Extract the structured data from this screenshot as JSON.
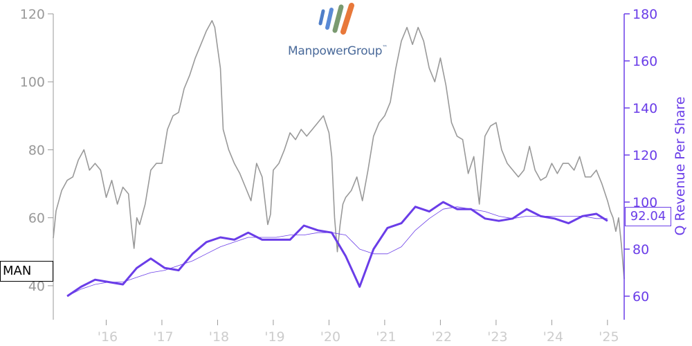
{
  "logo": {
    "text": "ManpowerGroup",
    "trademark": "™"
  },
  "ticker": "MAN",
  "current_value": "92.04",
  "colors": {
    "price": "#999999",
    "revenue": "#6a3de8",
    "axis_left": "#999999",
    "axis_right": "#6a3de8"
  },
  "chart_data": {
    "type": "line",
    "ylabel_right": "Q Revenue Per Share",
    "xlabel": "",
    "x_tick_labels": [
      "'16",
      "'17",
      "'18",
      "'19",
      "'20",
      "'21",
      "'22",
      "'23",
      "'24",
      "'25"
    ],
    "x_tick_positions": [
      2016,
      2017,
      2018,
      2019,
      2020,
      2021,
      2022,
      2023,
      2024,
      2025
    ],
    "xlim": [
      2015.05,
      2025.3
    ],
    "left_axis": {
      "ylim": [
        30,
        120
      ],
      "ticks": [
        40,
        60,
        80,
        100,
        120
      ]
    },
    "right_axis": {
      "ylim": [
        50,
        180
      ],
      "ticks": [
        60,
        80,
        100,
        120,
        140,
        160,
        180
      ]
    },
    "series": [
      {
        "name": "MAN",
        "axis": "left",
        "x": [
          2015.05,
          2015.1,
          2015.2,
          2015.3,
          2015.4,
          2015.5,
          2015.6,
          2015.7,
          2015.8,
          2015.9,
          2016.0,
          2016.1,
          2016.2,
          2016.3,
          2016.4,
          2016.45,
          2016.5,
          2016.55,
          2016.6,
          2016.7,
          2016.8,
          2016.9,
          2017.0,
          2017.1,
          2017.2,
          2017.3,
          2017.4,
          2017.5,
          2017.6,
          2017.7,
          2017.8,
          2017.9,
          2017.95,
          2018.0,
          2018.05,
          2018.1,
          2018.2,
          2018.3,
          2018.4,
          2018.5,
          2018.6,
          2018.7,
          2018.8,
          2018.9,
          2018.95,
          2019.0,
          2019.1,
          2019.2,
          2019.3,
          2019.4,
          2019.5,
          2019.6,
          2019.7,
          2019.8,
          2019.9,
          2020.0,
          2020.05,
          2020.1,
          2020.15,
          2020.2,
          2020.25,
          2020.3,
          2020.4,
          2020.5,
          2020.6,
          2020.7,
          2020.8,
          2020.9,
          2021.0,
          2021.1,
          2021.2,
          2021.3,
          2021.4,
          2021.5,
          2021.6,
          2021.7,
          2021.8,
          2021.9,
          2022.0,
          2022.1,
          2022.2,
          2022.3,
          2022.4,
          2022.5,
          2022.6,
          2022.7,
          2022.8,
          2022.9,
          2023.0,
          2023.1,
          2023.2,
          2023.3,
          2023.4,
          2023.5,
          2023.6,
          2023.7,
          2023.8,
          2023.9,
          2024.0,
          2024.1,
          2024.2,
          2024.3,
          2024.4,
          2024.5,
          2024.6,
          2024.7,
          2024.8,
          2024.9,
          2025.0,
          2025.05,
          2025.1,
          2025.15,
          2025.2,
          2025.25,
          2025.3
        ],
        "values": [
          54,
          62,
          68,
          71,
          72,
          77,
          80,
          74,
          76,
          74,
          66,
          71,
          64,
          69,
          67,
          58,
          51,
          60,
          58,
          64,
          74,
          76,
          76,
          86,
          90,
          91,
          98,
          102,
          107,
          111,
          115,
          118,
          116,
          110,
          104,
          86,
          80,
          76,
          73,
          69,
          65,
          76,
          72,
          58,
          61,
          74,
          76,
          80,
          85,
          83,
          86,
          84,
          86,
          88,
          90,
          85,
          78,
          60,
          50,
          58,
          64,
          66,
          68,
          72,
          65,
          74,
          84,
          88,
          90,
          94,
          104,
          112,
          116,
          111,
          116,
          112,
          104,
          100,
          107,
          99,
          88,
          84,
          83,
          73,
          78,
          64,
          84,
          87,
          88,
          80,
          76,
          74,
          72,
          74,
          81,
          74,
          71,
          72,
          76,
          73,
          76,
          76,
          74,
          78,
          72,
          72,
          74,
          70,
          65,
          62,
          60,
          56,
          60,
          52,
          42
        ]
      },
      {
        "name": "Q Revenue Per Share",
        "axis": "right",
        "x": [
          2015.3,
          2015.55,
          2015.8,
          2016.05,
          2016.3,
          2016.55,
          2016.8,
          2017.05,
          2017.3,
          2017.55,
          2017.8,
          2018.05,
          2018.3,
          2018.55,
          2018.8,
          2019.05,
          2019.3,
          2019.55,
          2019.8,
          2020.05,
          2020.3,
          2020.55,
          2020.8,
          2021.05,
          2021.3,
          2021.55,
          2021.8,
          2022.05,
          2022.3,
          2022.55,
          2022.8,
          2023.05,
          2023.3,
          2023.55,
          2023.8,
          2024.05,
          2024.3,
          2024.55,
          2024.8,
          2025.0
        ],
        "values": [
          60,
          64,
          67,
          66,
          65,
          72,
          76,
          72,
          71,
          78,
          83,
          85,
          84,
          87,
          84,
          84,
          84,
          90,
          88,
          87,
          77,
          64,
          80,
          89,
          91,
          98,
          96,
          100,
          97,
          97,
          93,
          92,
          93,
          97,
          94,
          93,
          91,
          94,
          95,
          92
        ]
      },
      {
        "name": "Q Revenue Per Share (trend)",
        "axis": "right",
        "x": [
          2015.3,
          2015.55,
          2015.8,
          2016.05,
          2016.3,
          2016.55,
          2016.8,
          2017.05,
          2017.3,
          2017.55,
          2017.8,
          2018.05,
          2018.3,
          2018.55,
          2018.8,
          2019.05,
          2019.3,
          2019.55,
          2019.8,
          2020.05,
          2020.3,
          2020.55,
          2020.8,
          2021.05,
          2021.3,
          2021.55,
          2021.8,
          2022.05,
          2022.3,
          2022.55,
          2022.8,
          2023.05,
          2023.3,
          2023.55,
          2023.8,
          2024.05,
          2024.3,
          2024.55,
          2024.8,
          2025.0
        ],
        "values": [
          60,
          63,
          65,
          66,
          66,
          68,
          70,
          71,
          73,
          75,
          78,
          81,
          83,
          85,
          85,
          85,
          86,
          86,
          87,
          87,
          86,
          80,
          78,
          78,
          81,
          88,
          93,
          97,
          98,
          97,
          96,
          94,
          93,
          94,
          94,
          94,
          94,
          94,
          93,
          93
        ]
      }
    ],
    "grid": false,
    "legend": "none"
  }
}
